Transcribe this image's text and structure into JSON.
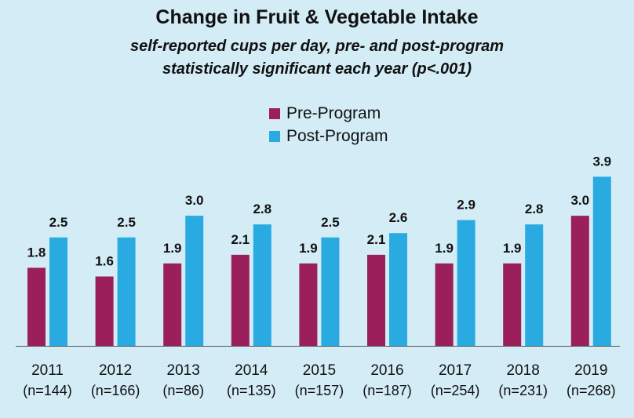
{
  "chart_data": {
    "type": "bar",
    "title": "Change in Fruit & Vegetable Intake",
    "subtitle_lines": [
      "self-reported cups per day, pre- and post-program",
      "statistically significant each year (p<.001)"
    ],
    "categories": [
      "2011",
      "2012",
      "2013",
      "2014",
      "2015",
      "2016",
      "2017",
      "2018",
      "2019"
    ],
    "category_notes": [
      "(n=144)",
      "(n=166)",
      "(n=86)",
      "(n=135)",
      "(n=157)",
      "(n=187)",
      "(n=254)",
      "(n=231)",
      "(n=268)"
    ],
    "series": [
      {
        "name": "Pre-Program",
        "color": "#9b1f5b",
        "values": [
          1.8,
          1.6,
          1.9,
          2.1,
          1.9,
          2.1,
          1.9,
          1.9,
          3.0
        ],
        "labels": [
          "1.8",
          "1.6",
          "1.9",
          "2.1",
          "1.9",
          "2.1",
          "1.9",
          "1.9",
          "3.0"
        ]
      },
      {
        "name": "Post-Program",
        "color": "#29abe2",
        "values": [
          2.5,
          2.5,
          3.0,
          2.8,
          2.5,
          2.6,
          2.9,
          2.8,
          3.9
        ],
        "labels": [
          "2.5",
          "2.5",
          "3.0",
          "2.8",
          "2.5",
          "2.6",
          "2.9",
          "2.8",
          "3.9"
        ]
      }
    ],
    "ylim": [
      0,
      4
    ],
    "grid": false,
    "legend_placement": "top-center"
  }
}
